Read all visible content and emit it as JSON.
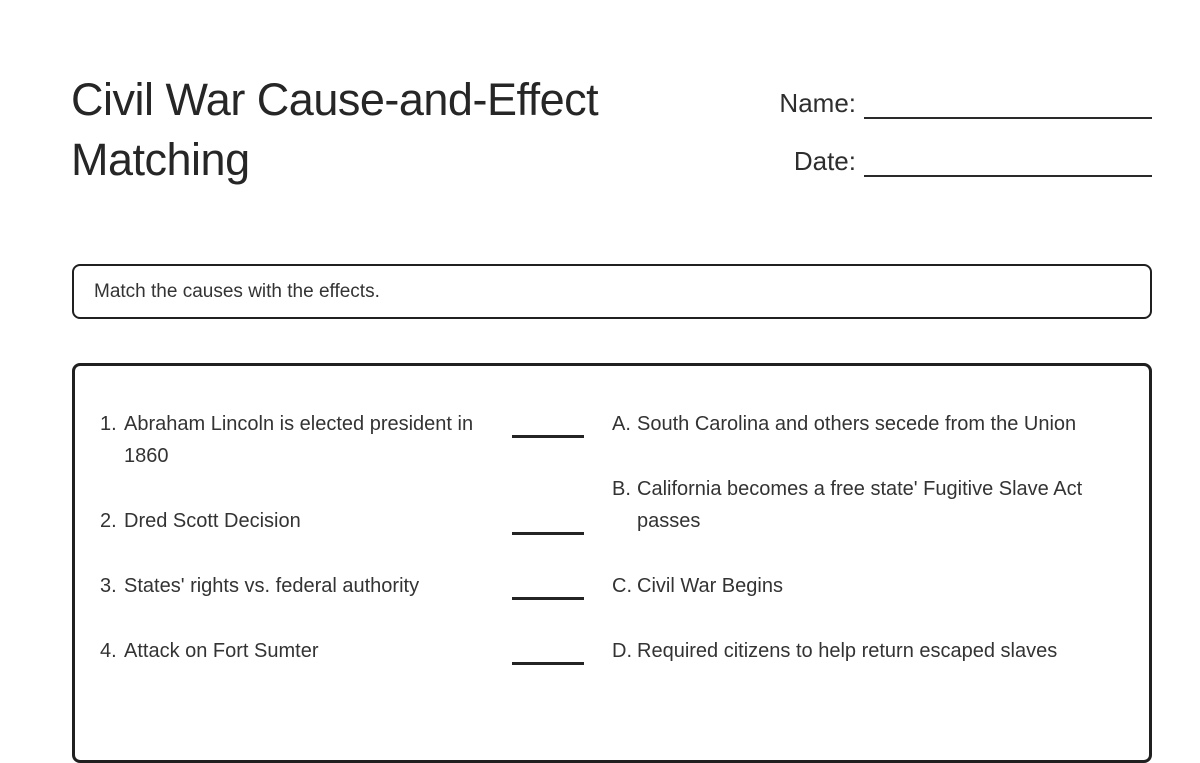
{
  "page": {
    "title": "Civil War Cause-and-Effect Matching"
  },
  "header": {
    "name_label": "Name:",
    "date_label": "Date:"
  },
  "instructions": {
    "text": "Match the causes with the effects."
  },
  "matching": {
    "causes": [
      {
        "number": "1.",
        "text": "Abraham Lincoln is elected president in 1860"
      },
      {
        "number": "2.",
        "text": "Dred Scott Decision"
      },
      {
        "number": "3.",
        "text": "States' rights vs. federal authority"
      },
      {
        "number": "4.",
        "text": "Attack on Fort Sumter"
      }
    ],
    "effects": [
      {
        "letter": "A.",
        "text": "South Carolina and others secede from the Union"
      },
      {
        "letter": "B.",
        "text": "California becomes a free state' Fugitive Slave Act passes"
      },
      {
        "letter": "C.",
        "text": "Civil War Begins"
      },
      {
        "letter": "D.",
        "text": "Required citizens to help return escaped slaves"
      }
    ]
  },
  "colors": {
    "text": "#333333",
    "title": "#262626",
    "border": "#202020",
    "line": "#2a2a2a",
    "background": "#ffffff"
  }
}
